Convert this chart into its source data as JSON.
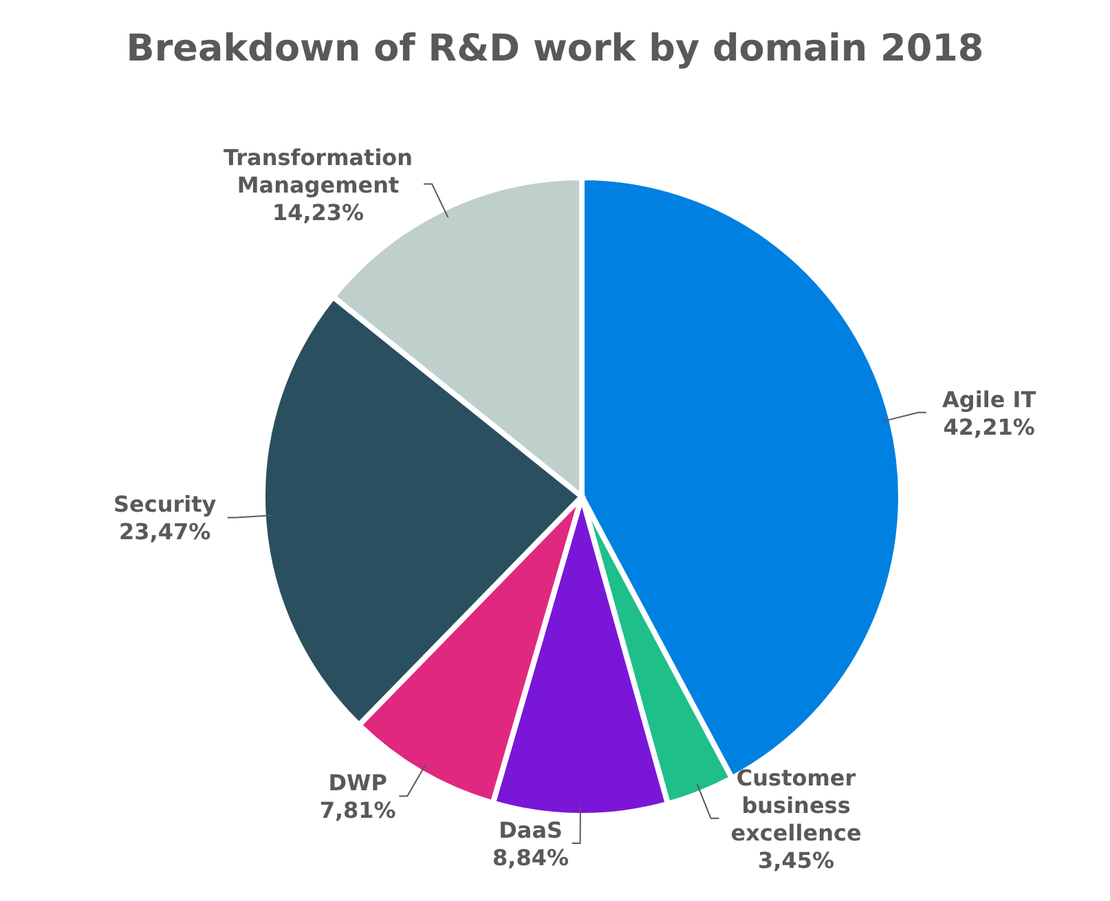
{
  "chart_data": {
    "type": "pie",
    "title": "Breakdown of R&D work by domain 2018",
    "categories": [
      "Agile IT",
      "Customer business excellence",
      "DaaS",
      "DWP",
      "Security",
      "Transformation Management"
    ],
    "values": [
      42.21,
      3.45,
      8.84,
      7.81,
      23.47,
      14.23
    ],
    "value_labels": [
      "42,21%",
      "3,45%",
      "8,84%",
      "7,81%",
      "23,47%",
      "14,23%"
    ],
    "colors": [
      "#0080e0",
      "#1fbf8a",
      "#7a16d8",
      "#e0287f",
      "#2a4f5e",
      "#bfcfcc"
    ],
    "legend": false
  }
}
